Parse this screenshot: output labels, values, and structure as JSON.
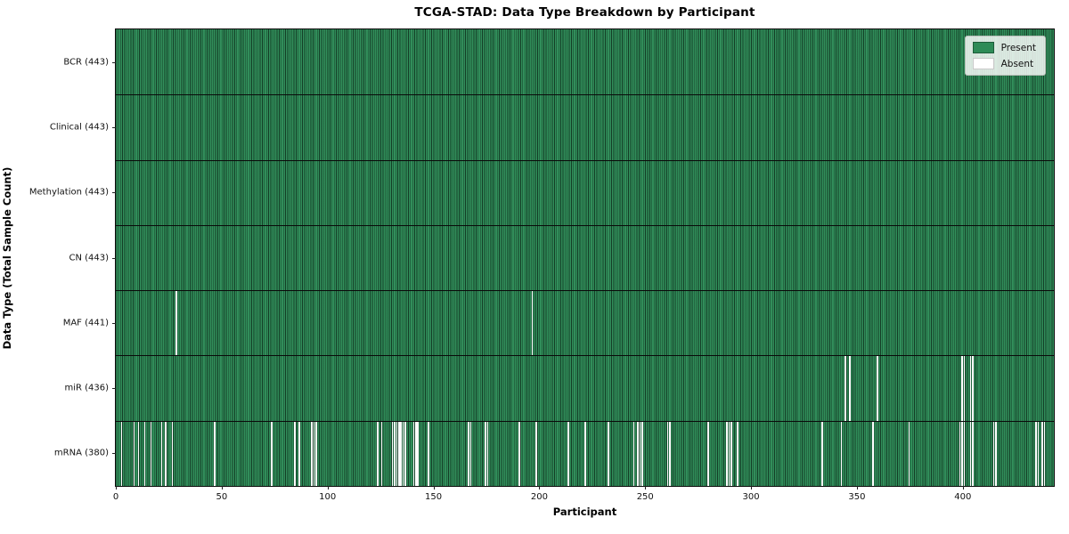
{
  "figure_title": "TCGA-STAD: Data Type Breakdown by Participant",
  "legend": {
    "present_label": "Present",
    "absent_label": "Absent"
  },
  "chart_data": {
    "type": "heatmap",
    "title": "TCGA-STAD: Data Type Breakdown by Participant",
    "xlabel": "Participant",
    "ylabel": "Data Type (Total Sample Count)",
    "n_participants": 443,
    "xlim": [
      0,
      443
    ],
    "x_ticks": [
      0,
      50,
      100,
      150,
      200,
      250,
      300,
      350,
      400
    ],
    "grid": false,
    "legend_position": "upper right",
    "legend_entries": [
      {
        "label": "Present",
        "color": "#2e8b57"
      },
      {
        "label": "Absent",
        "color": "#ffffff"
      }
    ],
    "colors": {
      "present": "#2e8b57",
      "absent": "#ffffff",
      "cell_edge": "#0a1c11",
      "row_separator": "#0a0a0a",
      "plot_border": "#0d0d0d"
    },
    "rows": [
      {
        "label": "BCR (443)",
        "data_type": "BCR",
        "present_count": 443,
        "absent_participants": []
      },
      {
        "label": "Clinical (443)",
        "data_type": "Clinical",
        "present_count": 443,
        "absent_participants": []
      },
      {
        "label": "Methylation (443)",
        "data_type": "Methylation",
        "present_count": 443,
        "absent_participants": []
      },
      {
        "label": "CN (443)",
        "data_type": "CN",
        "present_count": 443,
        "absent_participants": []
      },
      {
        "label": "MAF (441)",
        "data_type": "MAF",
        "present_count": 441,
        "absent_participants": [
          28,
          196
        ]
      },
      {
        "label": "miR (436)",
        "data_type": "miR",
        "present_count": 436,
        "absent_participants": [
          344,
          346,
          359,
          399,
          400,
          403,
          404
        ]
      },
      {
        "label": "mRNA (380)",
        "data_type": "mRNA",
        "present_count": 380,
        "absent_participants": [
          2,
          8,
          10,
          13,
          16,
          21,
          23,
          26,
          46,
          73,
          84,
          86,
          92,
          93,
          94,
          123,
          125,
          130,
          131,
          132,
          133,
          134,
          135,
          136,
          140,
          141,
          142,
          147,
          166,
          167,
          174,
          175,
          190,
          198,
          213,
          221,
          232,
          244,
          246,
          247,
          248,
          260,
          261,
          279,
          288,
          289,
          290,
          293,
          333,
          342,
          357,
          374,
          398,
          399,
          400,
          403,
          404,
          414,
          415,
          434,
          435,
          437,
          438
        ]
      }
    ]
  }
}
